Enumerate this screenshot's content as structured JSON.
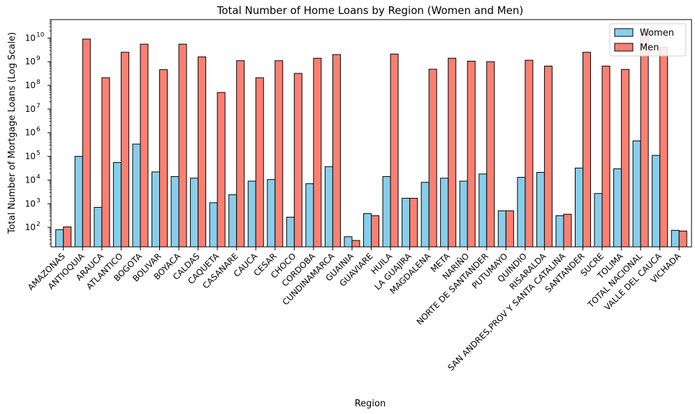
{
  "chart_data": {
    "type": "bar",
    "title": "Total Number of Home Loans by Region (Women and Men)",
    "xlabel": "Region",
    "ylabel": "Total Number of Mortgage Loans (Log Scale)",
    "yscale": "log",
    "ylim": [
      15,
      60000000000
    ],
    "yticks": [
      {
        "value": 100,
        "base": "10",
        "exp": "2"
      },
      {
        "value": 1000,
        "base": "10",
        "exp": "3"
      },
      {
        "value": 10000,
        "base": "10",
        "exp": "4"
      },
      {
        "value": 100000,
        "base": "10",
        "exp": "5"
      },
      {
        "value": 1000000,
        "base": "10",
        "exp": "6"
      },
      {
        "value": 10000000,
        "base": "10",
        "exp": "7"
      },
      {
        "value": 100000000,
        "base": "10",
        "exp": "8"
      },
      {
        "value": 1000000000,
        "base": "10",
        "exp": "9"
      },
      {
        "value": 10000000000,
        "base": "10",
        "exp": "10"
      }
    ],
    "grid": false,
    "legend_position": "top-right",
    "categories": [
      "AMAZONAS",
      "ANTIOQUIA",
      "ARAUCA",
      "ATLANTICO",
      "BOGOTA",
      "BOLIVAR",
      "BOYACA",
      "CALDAS",
      "CAQUETA",
      "CASANARE",
      "CAUCA",
      "CESAR",
      "CHOCO",
      "CORDOBA",
      "CUNDINAMARCA",
      "GUAINIA",
      "GUAVIARE",
      "HUILA",
      "LA GUAJIRA",
      "MAGDALENA",
      "META",
      "NARIÑO",
      "NORTE DE SANTANDER",
      "PUTUMAYO",
      "QUINDIO",
      "RISARALDA",
      "SAN ANDRES,PROV Y SANTA CATALINA",
      "SANTANDER",
      "SUCRE",
      "TOLIMA",
      "TOTAL NACIONAL",
      "VALLE DEL CAUCA",
      "VICHADA"
    ],
    "series": [
      {
        "name": "Women",
        "color": "#87ceeb",
        "values": [
          80,
          100000,
          700,
          55000,
          330000,
          22000,
          14000,
          12000,
          1100,
          2400,
          9000,
          10500,
          270,
          7000,
          37000,
          40,
          380,
          14000,
          1700,
          8000,
          12000,
          9000,
          18000,
          500,
          13000,
          21000,
          310,
          32000,
          2700,
          30000,
          450000,
          110000,
          75
        ]
      },
      {
        "name": "Men",
        "color": "#fa8072",
        "values": [
          105,
          9000000000,
          210000000,
          2500000000,
          5500000000,
          460000000,
          5500000000,
          1600000000,
          50000000,
          1100000000,
          210000000,
          1100000000,
          320000000,
          1400000000,
          2000000000,
          28,
          310,
          2100000000,
          1700,
          480000000,
          1400000000,
          1050000000,
          1000000000,
          500,
          1150000000,
          650000000,
          360,
          2500000000,
          650000000,
          470000000,
          25000000000,
          4000000000,
          70
        ]
      }
    ]
  }
}
